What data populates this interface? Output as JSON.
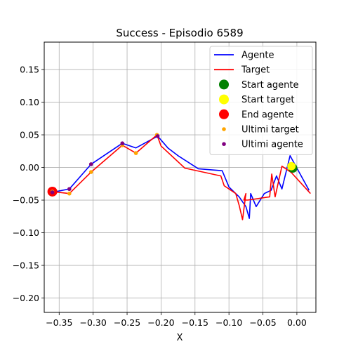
{
  "chart_data": {
    "type": "line",
    "title": "Success - Episodio 6589",
    "xlabel": "X",
    "ylabel": "",
    "xlim": [
      -0.372,
      0.028
    ],
    "ylim": [
      -0.222,
      0.192
    ],
    "xticks": [
      -0.35,
      -0.3,
      -0.25,
      -0.2,
      -0.15,
      -0.1,
      -0.05,
      0.0
    ],
    "xtick_labels": [
      "−0.35",
      "−0.30",
      "−0.25",
      "−0.20",
      "−0.15",
      "−0.10",
      "−0.05",
      "0.00"
    ],
    "yticks": [
      0.15,
      0.1,
      0.05,
      0.0,
      -0.05,
      -0.1,
      -0.15,
      -0.2
    ],
    "ytick_labels": [
      "0.15",
      "0.10",
      "0.05",
      "0.00",
      "−0.05",
      "−0.10",
      "−0.15",
      "−0.20"
    ],
    "grid": true,
    "legend_position": "top-right",
    "series": [
      {
        "name": "Agente",
        "kind": "line",
        "color": "#0000ff",
        "points": [
          [
            -0.36,
            -0.038
          ],
          [
            -0.335,
            -0.033
          ],
          [
            -0.303,
            0.005
          ],
          [
            -0.257,
            0.037
          ],
          [
            -0.237,
            0.03
          ],
          [
            -0.205,
            0.048
          ],
          [
            -0.19,
            0.03
          ],
          [
            -0.175,
            0.018
          ],
          [
            -0.145,
            -0.002
          ],
          [
            -0.11,
            -0.005
          ],
          [
            -0.1,
            -0.03
          ],
          [
            -0.085,
            -0.045
          ],
          [
            -0.075,
            -0.06
          ],
          [
            -0.07,
            -0.078
          ],
          [
            -0.068,
            -0.04
          ],
          [
            -0.06,
            -0.06
          ],
          [
            -0.048,
            -0.04
          ],
          [
            -0.038,
            -0.035
          ],
          [
            -0.03,
            -0.013
          ],
          [
            -0.022,
            -0.033
          ],
          [
            -0.01,
            0.018
          ],
          [
            0.018,
            -0.035
          ]
        ]
      },
      {
        "name": "Target",
        "kind": "line",
        "color": "#ff0000",
        "points": [
          [
            -0.36,
            -0.037
          ],
          [
            -0.335,
            -0.04
          ],
          [
            -0.303,
            -0.007
          ],
          [
            -0.257,
            0.034
          ],
          [
            -0.237,
            0.022
          ],
          [
            -0.206,
            0.05
          ],
          [
            -0.2,
            0.033
          ],
          [
            -0.165,
            -0.001
          ],
          [
            -0.112,
            -0.013
          ],
          [
            -0.107,
            -0.028
          ],
          [
            -0.09,
            -0.04
          ],
          [
            -0.085,
            -0.058
          ],
          [
            -0.08,
            -0.08
          ],
          [
            -0.075,
            -0.04
          ],
          [
            -0.078,
            -0.05
          ],
          [
            -0.072,
            -0.05
          ],
          [
            -0.04,
            -0.045
          ],
          [
            -0.037,
            -0.01
          ],
          [
            -0.032,
            -0.045
          ],
          [
            -0.022,
            0.002
          ],
          [
            -0.008,
            -0.008
          ],
          [
            0.02,
            -0.04
          ]
        ]
      },
      {
        "name": "Start agente",
        "kind": "marker",
        "color": "#008000",
        "points": [
          [
            -0.006,
            -0.001
          ]
        ]
      },
      {
        "name": "Start target",
        "kind": "marker",
        "color": "#ffff00",
        "points": [
          [
            -0.008,
            0.002
          ]
        ]
      },
      {
        "name": "End agente",
        "kind": "marker",
        "color": "#ff0000",
        "points": [
          [
            -0.36,
            -0.037
          ]
        ]
      },
      {
        "name": "Ultimi target",
        "kind": "scatter",
        "color": "#ffa500",
        "points": [
          [
            -0.36,
            -0.037
          ],
          [
            -0.335,
            -0.04
          ],
          [
            -0.303,
            -0.007
          ],
          [
            -0.257,
            0.034
          ],
          [
            -0.237,
            0.022
          ],
          [
            -0.206,
            0.05
          ]
        ]
      },
      {
        "name": "Ultimi agente",
        "kind": "scatter",
        "color": "#800080",
        "points": [
          [
            -0.36,
            -0.038
          ],
          [
            -0.335,
            -0.033
          ],
          [
            -0.303,
            0.005
          ],
          [
            -0.257,
            0.037
          ],
          [
            -0.205,
            0.048
          ]
        ]
      }
    ]
  }
}
